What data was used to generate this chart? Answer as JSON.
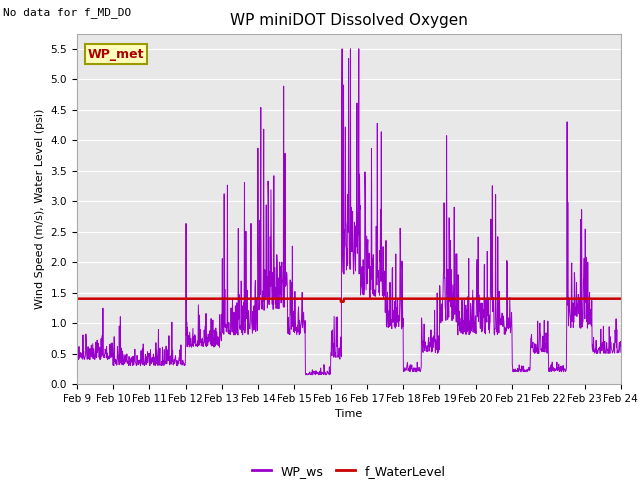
{
  "title": "WP miniDOT Dissolved Oxygen",
  "no_data_text": "No data for f_MD_DO",
  "ylabel": "Wind Speed (m/s), Water Level (psi)",
  "xlabel": "Time",
  "ylim": [
    0.0,
    5.75
  ],
  "yticks": [
    0.0,
    0.5,
    1.0,
    1.5,
    2.0,
    2.5,
    3.0,
    3.5,
    4.0,
    4.5,
    5.0,
    5.5
  ],
  "water_level": 1.4,
  "wp_met_label": "WP_met",
  "legend_labels": [
    "WP_ws",
    "f_WaterLevel"
  ],
  "line_color_ws": "#9900cc",
  "line_color_wl": "#cc0000",
  "bg_color": "#e8e8e8",
  "xtick_days": [
    9,
    10,
    11,
    12,
    13,
    14,
    15,
    16,
    17,
    18,
    19,
    20,
    21,
    22,
    23,
    24
  ],
  "xtick_labels": [
    "Feb 9",
    "Feb 10",
    "Feb 11",
    "Feb 12",
    "Feb 13",
    "Feb 14",
    "Feb 15",
    "Feb 16",
    "Feb 17",
    "Feb 18",
    "Feb 19",
    "Feb 20",
    "Feb 21",
    "Feb 22",
    "Feb 23",
    "Feb 24"
  ],
  "title_fontsize": 11,
  "axis_label_fontsize": 8,
  "tick_fontsize": 7.5,
  "legend_fontsize": 9,
  "no_data_fontsize": 8,
  "wp_met_fontsize": 9
}
